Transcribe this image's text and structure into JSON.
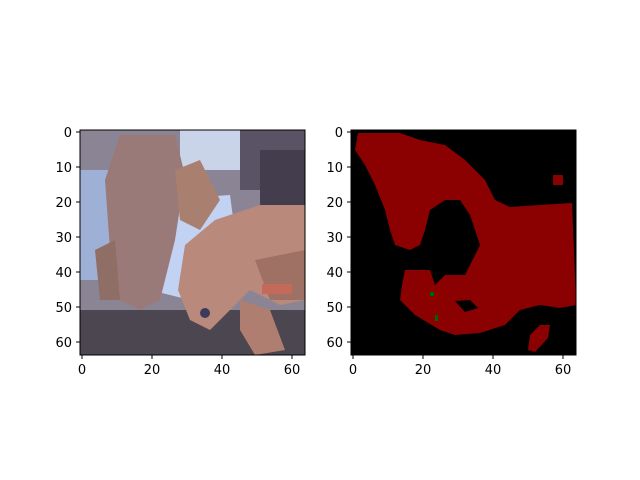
{
  "figure": {
    "background": "#ffffff",
    "panels": [
      {
        "name": "input-photo",
        "kind": "image",
        "x_ticks": [
          "0",
          "20",
          "40",
          "60"
        ],
        "y_ticks": [
          "0",
          "10",
          "20",
          "30",
          "40",
          "50",
          "60"
        ],
        "description_colors": {
          "sky": "#b9c8e6",
          "newt_body": "#a77b70",
          "newt_shadow": "#7a5c58",
          "dark_leaves": "#3a3642",
          "water_blue": "#c5d4f0",
          "newt_skin_light": "#c69384",
          "ground_dark": "#4a4448"
        }
      },
      {
        "name": "segmentation-mask",
        "kind": "mask",
        "x_ticks": [
          "0",
          "20",
          "40",
          "60"
        ],
        "y_ticks": [
          "0",
          "10",
          "20",
          "30",
          "40",
          "50",
          "60"
        ],
        "colors": {
          "background": "#000000",
          "foreground": "#8b0000",
          "minor_class": "#006400"
        }
      }
    ]
  }
}
